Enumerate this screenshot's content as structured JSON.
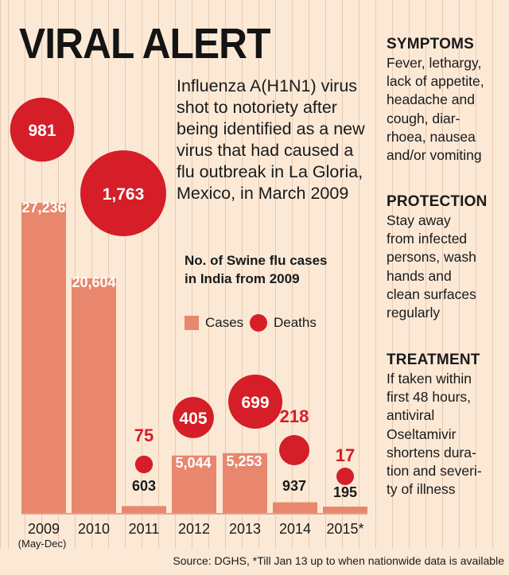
{
  "title": "VIRAL ALERT",
  "intro": "Influenza A(H1N1) virus shot to notoriety after being identified as a new virus that had caused a flu outbreak in La Gloria, Mexico, in March 2009",
  "sidebar": {
    "symptoms": {
      "heading": "SYMPTOMS",
      "text": "Fever, lethargy, lack of appetite, headache and cough, diar-rhoea, nausea and/or vomiting"
    },
    "protection": {
      "heading": "PROTECTION",
      "text": "Stay away from infected persons, wash hands and clean surfaces regularly"
    },
    "treatment": {
      "heading": "TREATMENT",
      "text": "If taken within first 48 hours, antiviral Oseltamivir shortens dura-tion and severi-ty of illness"
    }
  },
  "source": "Source: DGHS, *Till Jan 13 up to when nationwide data is available",
  "colors": {
    "cases": "#e8876d",
    "deaths": "#d51e28",
    "background": "#fbe9d6"
  },
  "chart_data": {
    "type": "bar",
    "title": "No. of Swine flu cases in India from 2009",
    "categories": [
      "2009",
      "2010",
      "2011",
      "2012",
      "2013",
      "2014",
      "2015*"
    ],
    "category_notes": [
      "(May-Dec)",
      "",
      "",
      "",
      "",
      "",
      ""
    ],
    "series": [
      {
        "name": "Cases",
        "values": [
          27236,
          20604,
          603,
          5044,
          5253,
          937,
          195
        ],
        "labels": [
          "27,236",
          "20,604",
          "603",
          "5,044",
          "5,253",
          "937",
          "195"
        ]
      },
      {
        "name": "Deaths",
        "values": [
          981,
          1763,
          75,
          405,
          699,
          218,
          17
        ],
        "labels": [
          "981",
          "1,763",
          "75",
          "405",
          "699",
          "218",
          "17"
        ]
      }
    ],
    "legend": [
      "Cases",
      "Deaths"
    ],
    "deaths_shown_as": "circle area"
  }
}
